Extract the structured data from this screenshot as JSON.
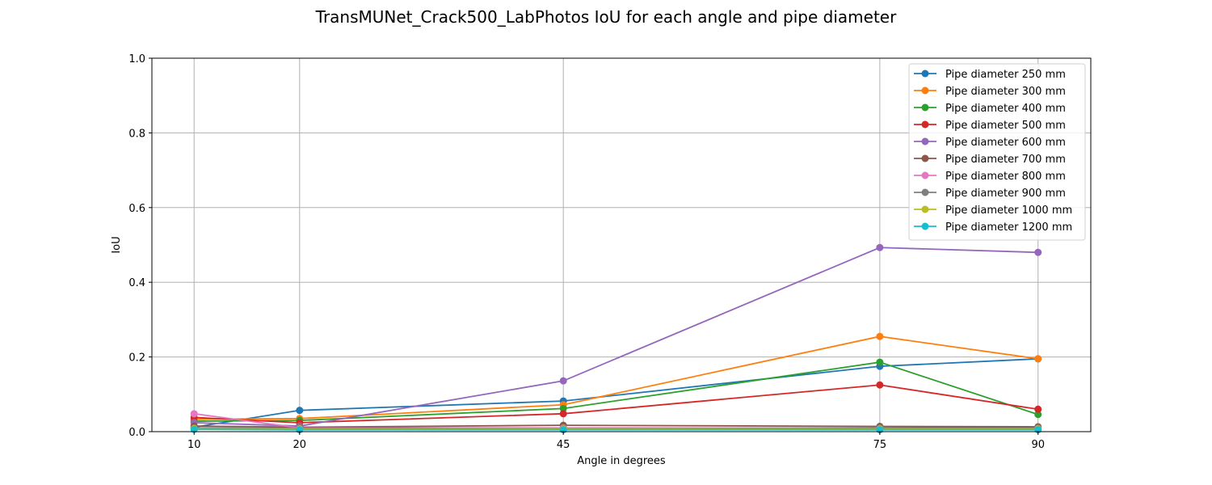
{
  "chart_data": {
    "type": "line",
    "title": "TransMUNet_Crack500_LabPhotos IoU for each angle and pipe diameter",
    "xlabel": "Angle in degrees",
    "ylabel": "IoU",
    "x": [
      10,
      20,
      45,
      75,
      90
    ],
    "x_ticks": [
      "10",
      "20",
      "45",
      "75",
      "90"
    ],
    "xlim": [
      6,
      95
    ],
    "ylim": [
      0,
      1
    ],
    "y_ticks": [
      "0.0",
      "0.2",
      "0.4",
      "0.6",
      "0.8",
      "1.0"
    ],
    "grid": true,
    "legend_position": "top-right",
    "series": [
      {
        "name": "Pipe diameter 250 mm",
        "color": "#1f77b4",
        "values": [
          0.012,
          0.057,
          0.082,
          0.175,
          0.195
        ]
      },
      {
        "name": "Pipe diameter 300 mm",
        "color": "#ff7f0e",
        "values": [
          0.033,
          0.035,
          0.072,
          0.255,
          0.195
        ]
      },
      {
        "name": "Pipe diameter 400 mm",
        "color": "#2ca02c",
        "values": [
          0.028,
          0.03,
          0.062,
          0.186,
          0.046
        ]
      },
      {
        "name": "Pipe diameter 500 mm",
        "color": "#d62728",
        "values": [
          0.038,
          0.024,
          0.048,
          0.125,
          0.06
        ]
      },
      {
        "name": "Pipe diameter 600 mm",
        "color": "#9467bd",
        "values": [
          0.024,
          0.015,
          0.136,
          0.493,
          0.48
        ]
      },
      {
        "name": "Pipe diameter 700 mm",
        "color": "#8c564b",
        "values": [
          0.015,
          0.012,
          0.017,
          0.014,
          0.013
        ]
      },
      {
        "name": "Pipe diameter 800 mm",
        "color": "#e377c2",
        "values": [
          0.048,
          0.01,
          0.01,
          0.009,
          0.009
        ]
      },
      {
        "name": "Pipe diameter 900 mm",
        "color": "#7f7f7f",
        "values": [
          0.01,
          0.009,
          0.008,
          0.01,
          0.01
        ]
      },
      {
        "name": "Pipe diameter 1000 mm",
        "color": "#bcbd22",
        "values": [
          0.008,
          0.007,
          0.007,
          0.007,
          0.007
        ]
      },
      {
        "name": "Pipe diameter 1200 mm",
        "color": "#17becf",
        "values": [
          0.006,
          0.005,
          0.005,
          0.005,
          0.005
        ]
      }
    ]
  }
}
